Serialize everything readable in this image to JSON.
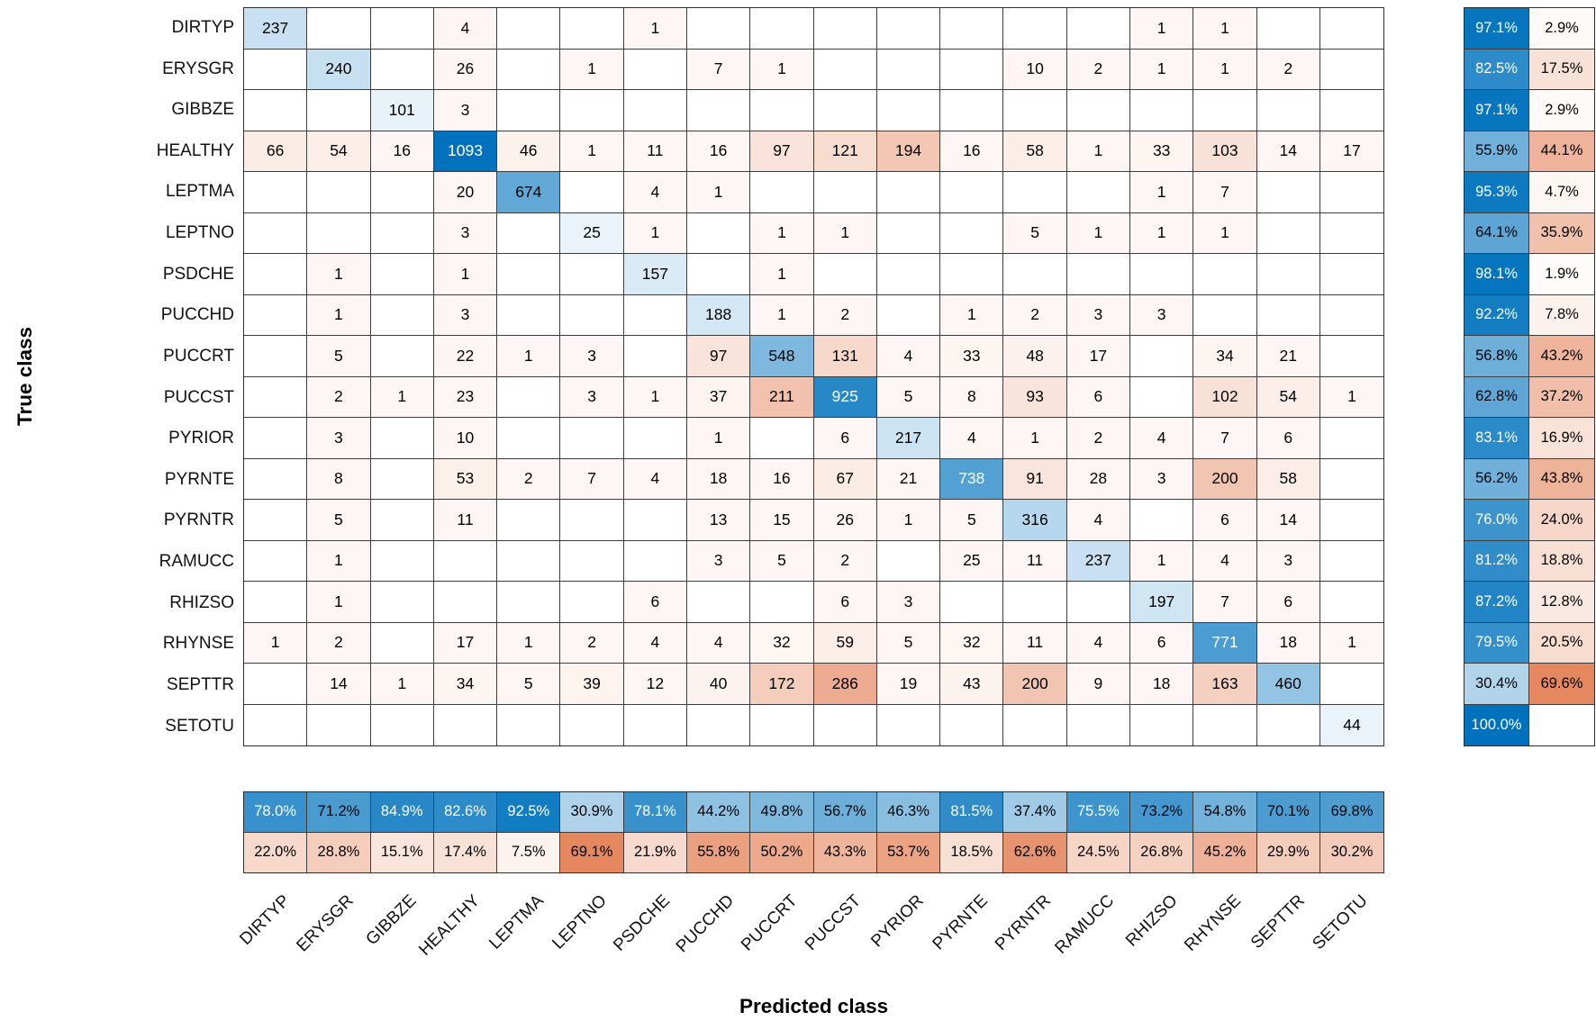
{
  "chart_data": {
    "type": "heatmap",
    "subtype": "confusion-matrix",
    "xlabel": "Predicted class",
    "ylabel": "True class",
    "classes": [
      "DIRTYP",
      "ERYSGR",
      "GIBBZE",
      "HEALTHY",
      "LEPTMA",
      "LEPTNO",
      "PSDCHE",
      "PUCCHD",
      "PUCCRT",
      "PUCCST",
      "PYRIOR",
      "PYRNTE",
      "PYRNTR",
      "RAMUCC",
      "RHIZSO",
      "RHYNSE",
      "SEPTTR",
      "SETOTU"
    ],
    "matrix": [
      [
        237,
        0,
        0,
        4,
        0,
        0,
        1,
        0,
        0,
        0,
        0,
        0,
        0,
        0,
        1,
        1,
        0,
        0
      ],
      [
        0,
        240,
        0,
        26,
        0,
        1,
        0,
        7,
        1,
        0,
        0,
        0,
        10,
        2,
        1,
        1,
        2,
        0
      ],
      [
        0,
        0,
        101,
        3,
        0,
        0,
        0,
        0,
        0,
        0,
        0,
        0,
        0,
        0,
        0,
        0,
        0,
        0
      ],
      [
        66,
        54,
        16,
        1093,
        46,
        1,
        11,
        16,
        97,
        121,
        194,
        16,
        58,
        1,
        33,
        103,
        14,
        17
      ],
      [
        0,
        0,
        0,
        20,
        674,
        0,
        4,
        1,
        0,
        0,
        0,
        0,
        0,
        0,
        1,
        7,
        0,
        0
      ],
      [
        0,
        0,
        0,
        3,
        0,
        25,
        1,
        0,
        1,
        1,
        0,
        0,
        5,
        1,
        1,
        1,
        0,
        0
      ],
      [
        0,
        1,
        0,
        1,
        0,
        0,
        157,
        0,
        1,
        0,
        0,
        0,
        0,
        0,
        0,
        0,
        0,
        0
      ],
      [
        0,
        1,
        0,
        3,
        0,
        0,
        0,
        188,
        1,
        2,
        0,
        1,
        2,
        3,
        3,
        0,
        0,
        0
      ],
      [
        0,
        5,
        0,
        22,
        1,
        3,
        0,
        97,
        548,
        131,
        4,
        33,
        48,
        17,
        0,
        34,
        21,
        0
      ],
      [
        0,
        2,
        1,
        23,
        0,
        3,
        1,
        37,
        211,
        925,
        5,
        8,
        93,
        6,
        0,
        102,
        54,
        1
      ],
      [
        0,
        3,
        0,
        10,
        0,
        0,
        0,
        1,
        0,
        6,
        217,
        4,
        1,
        2,
        4,
        7,
        6,
        0
      ],
      [
        0,
        8,
        0,
        53,
        2,
        7,
        4,
        18,
        16,
        67,
        21,
        738,
        91,
        28,
        3,
        200,
        58,
        0
      ],
      [
        0,
        5,
        0,
        11,
        0,
        0,
        0,
        13,
        15,
        26,
        1,
        5,
        316,
        4,
        0,
        6,
        14,
        0
      ],
      [
        0,
        1,
        0,
        0,
        0,
        0,
        0,
        3,
        5,
        2,
        0,
        25,
        11,
        237,
        1,
        4,
        3,
        0
      ],
      [
        0,
        1,
        0,
        0,
        0,
        0,
        6,
        0,
        0,
        6,
        3,
        0,
        0,
        0,
        197,
        7,
        6,
        0
      ],
      [
        1,
        2,
        0,
        17,
        1,
        2,
        4,
        4,
        32,
        59,
        5,
        32,
        11,
        4,
        6,
        771,
        18,
        1
      ],
      [
        0,
        14,
        1,
        34,
        5,
        39,
        12,
        40,
        172,
        286,
        19,
        43,
        200,
        9,
        18,
        163,
        460,
        0
      ],
      [
        0,
        0,
        0,
        0,
        0,
        0,
        0,
        0,
        0,
        0,
        0,
        0,
        0,
        0,
        0,
        0,
        0,
        44
      ]
    ],
    "row_summary": {
      "description": "per-true-class: correct % (blue) and incorrect % (orange)",
      "correct": [
        97.1,
        82.5,
        97.1,
        55.9,
        95.3,
        64.1,
        98.1,
        92.2,
        56.8,
        62.8,
        83.1,
        56.2,
        76.0,
        81.2,
        87.2,
        79.5,
        30.4,
        100.0
      ],
      "incorrect": [
        2.9,
        17.5,
        2.9,
        44.1,
        4.7,
        35.9,
        1.9,
        7.8,
        43.2,
        37.2,
        16.9,
        43.8,
        24.0,
        18.8,
        12.8,
        20.5,
        69.6,
        null
      ]
    },
    "col_summary": {
      "description": "per-predicted-class: correct % (blue) and incorrect % (orange)",
      "correct": [
        78.0,
        71.2,
        84.9,
        82.6,
        92.5,
        30.9,
        78.1,
        44.2,
        49.8,
        56.7,
        46.3,
        81.5,
        37.4,
        75.5,
        73.2,
        54.8,
        70.1,
        69.8
      ],
      "incorrect": [
        22.0,
        28.8,
        15.1,
        17.4,
        7.5,
        69.1,
        21.9,
        55.8,
        50.2,
        43.3,
        53.7,
        18.5,
        62.6,
        24.5,
        26.8,
        45.2,
        29.9,
        30.2
      ]
    },
    "colors": {
      "diagonal_base": "#0072bd",
      "offdiagonal_base": "#d95319",
      "gridline": "#3d3d3d",
      "background": "#ffffff"
    },
    "legend_position": "none",
    "grid": true
  }
}
